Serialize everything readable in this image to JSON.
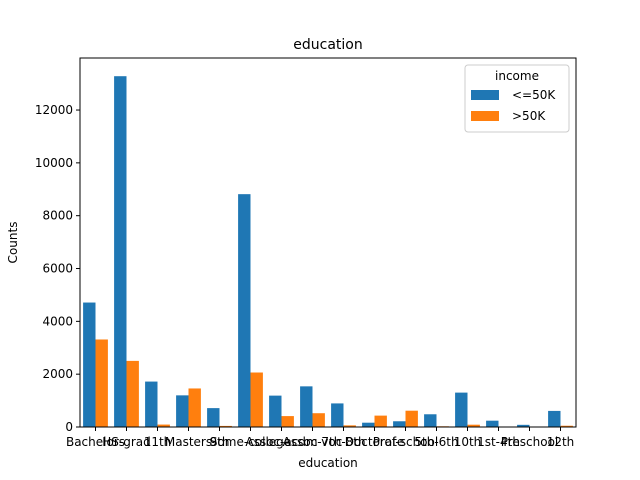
{
  "chart_data": {
    "type": "bar",
    "title": "education",
    "xlabel": "education",
    "ylabel": "Counts",
    "ylim": [
      0,
      13970
    ],
    "yticks": [
      0,
      2000,
      4000,
      6000,
      8000,
      10000,
      12000
    ],
    "ytick_labels": [
      "0",
      "2000",
      "4000",
      "6000",
      "8000",
      "10000",
      "12000"
    ],
    "categories": [
      "Bachelors",
      "HS-grad",
      "11th",
      "Masters",
      "9th",
      "Some-college",
      "Assoc-acdm",
      "Assoc-voc",
      "7th-8th",
      "Doctorate",
      "Prof-school",
      "5th-6th",
      "10th",
      "1st-4th",
      "Preschool",
      "12th"
    ],
    "series": [
      {
        "name": "<=50K",
        "color": "#1f77b4",
        "values": [
          4712,
          13281,
          1720,
          1198,
          715,
          8815,
          1188,
          1539,
          893,
          163,
          217,
          482,
          1302,
          239,
          82,
          609
        ]
      },
      {
        "name": ">50K",
        "color": "#ff7f0e",
        "values": [
          3313,
          2503,
          92,
          1459,
          41,
          2063,
          413,
          522,
          62,
          431,
          617,
          27,
          87,
          8,
          1,
          48
        ]
      }
    ],
    "legend": {
      "title": "income",
      "position": "top-right"
    },
    "grid": false
  }
}
